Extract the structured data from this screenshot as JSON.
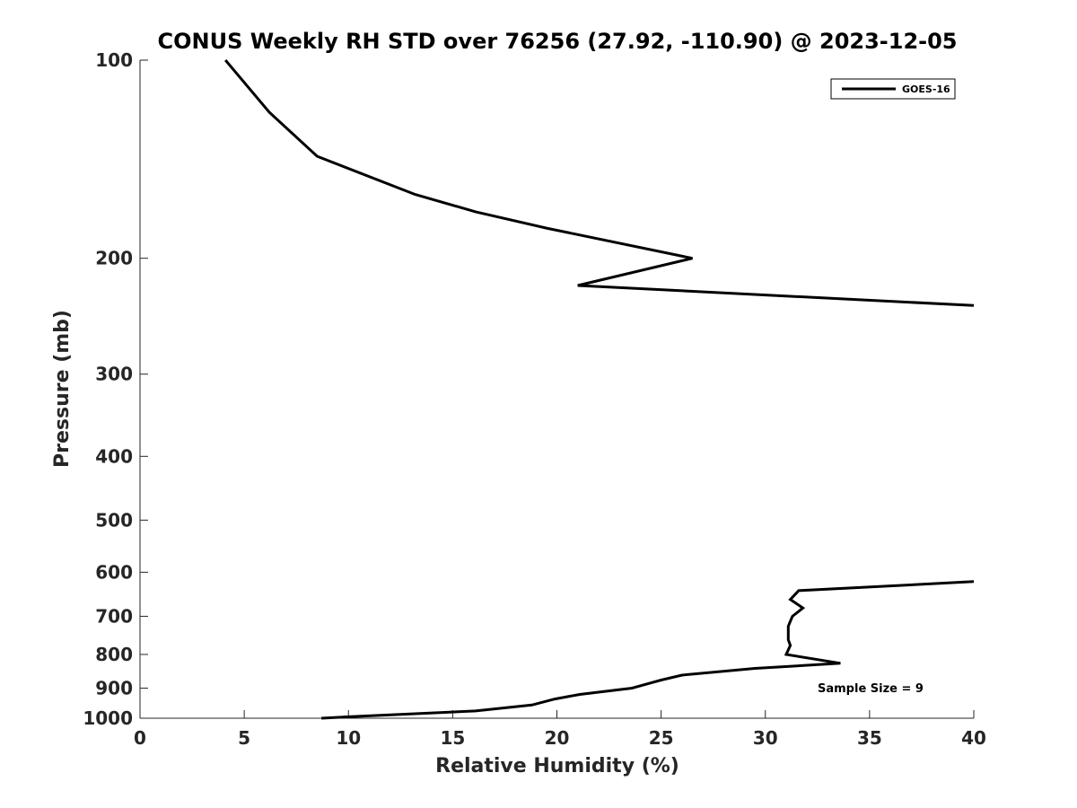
{
  "chart_data": {
    "type": "line",
    "title": "CONUS Weekly RH STD over 76256 (27.92, -110.90) @ 2023-12-05",
    "xlabel": "Relative Humidity (%)",
    "ylabel": "Pressure (mb)",
    "xlim": [
      0,
      40
    ],
    "ylim": [
      1000,
      100
    ],
    "y_scale": "log",
    "y_reversed": true,
    "grid": false,
    "legend_position": "top-right",
    "xticks": [
      "0",
      "5",
      "10",
      "15",
      "20",
      "25",
      "30",
      "35",
      "40"
    ],
    "xtick_values": [
      0,
      5,
      10,
      15,
      20,
      25,
      30,
      35,
      40
    ],
    "yticks": [
      "100",
      "200",
      "300",
      "400",
      "500",
      "600",
      "700",
      "800",
      "900",
      "1000"
    ],
    "ytick_values": [
      100,
      200,
      300,
      400,
      500,
      600,
      700,
      800,
      900,
      1000
    ],
    "series": [
      {
        "name": "GOES-16",
        "color": "#000000",
        "segments": [
          [
            [
              4.1,
              100
            ],
            [
              6.2,
              120
            ],
            [
              8.5,
              140
            ],
            [
              13.2,
              160
            ],
            [
              16.1,
              170
            ],
            [
              19.5,
              180
            ],
            [
              26.5,
              200
            ],
            [
              21.0,
              220
            ],
            [
              40.0,
              236
            ]
          ],
          [
            [
              40.0,
              620
            ],
            [
              31.6,
              640
            ],
            [
              31.2,
              660
            ],
            [
              31.8,
              680
            ],
            [
              31.3,
              700
            ],
            [
              31.1,
              725
            ],
            [
              31.1,
              760
            ],
            [
              31.2,
              775
            ],
            [
              31.0,
              800
            ],
            [
              33.6,
              825
            ],
            [
              29.5,
              840
            ],
            [
              26.0,
              860
            ],
            [
              25.0,
              875
            ],
            [
              23.6,
              900
            ],
            [
              21.1,
              920
            ],
            [
              19.9,
              935
            ],
            [
              18.8,
              955
            ],
            [
              16.1,
              975
            ],
            [
              10.0,
              995
            ],
            [
              8.7,
              1000
            ]
          ]
        ]
      }
    ],
    "annotations": [
      "Sample Size = 9"
    ]
  }
}
